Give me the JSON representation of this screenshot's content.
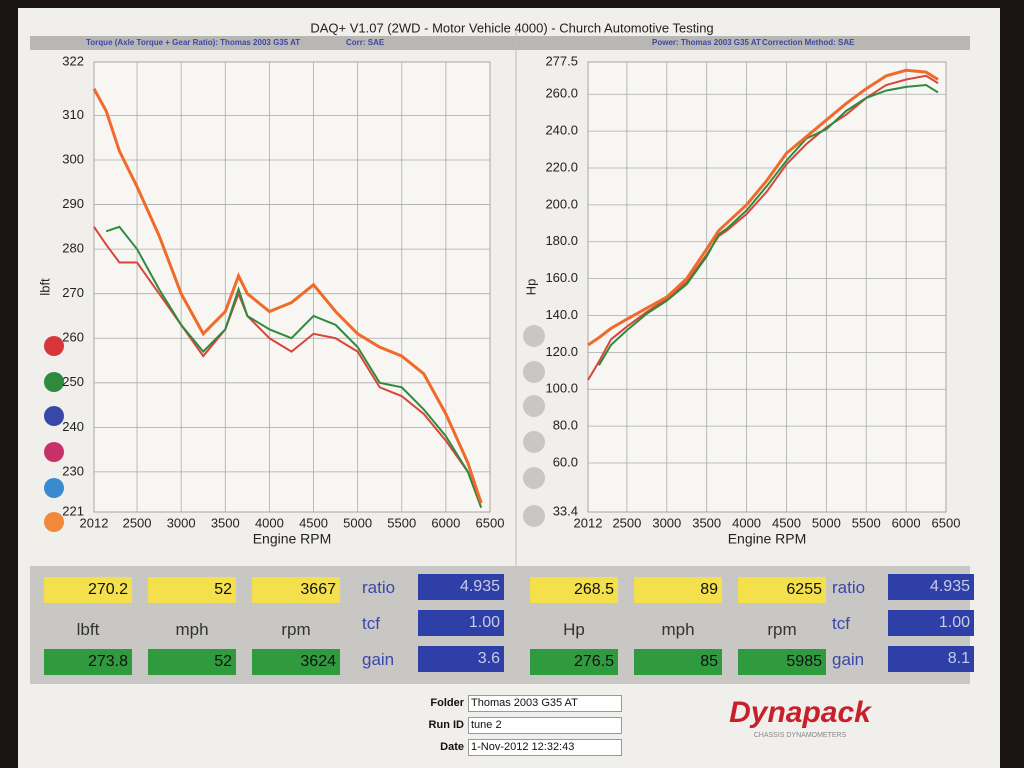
{
  "header": {
    "title": "DAQ+ V1.07 (2WD - Motor Vehicle 4000) - Church Automotive Testing"
  },
  "chart_data": [
    {
      "type": "line",
      "title": "Torque (Axle Torque + Gear Ratio): Thomas 2003 G35 AT",
      "subtitle": "Corr: SAE",
      "x_label": "Engine RPM",
      "y_label": "lbft",
      "x": [
        2012,
        2150,
        2300,
        2500,
        2750,
        3000,
        3250,
        3500,
        3650,
        3750,
        4000,
        4250,
        4500,
        4750,
        5000,
        5250,
        5500,
        5750,
        6000,
        6250,
        6400
      ],
      "xlim": [
        2012,
        6500
      ],
      "xticks": [
        2012,
        2500,
        3000,
        3500,
        4000,
        4500,
        5000,
        5500,
        6000,
        6500
      ],
      "ylim": [
        221,
        322
      ],
      "yticks": [
        221,
        230,
        240,
        250,
        260,
        270,
        280,
        290,
        300,
        310,
        322
      ],
      "grid": true,
      "series": [
        {
          "color": "#d8453a",
          "values": [
            285,
            281,
            277,
            277,
            270,
            263,
            256,
            262,
            270,
            265,
            260,
            257,
            261,
            260,
            257,
            249,
            247,
            243,
            237,
            230,
            222
          ]
        },
        {
          "color": "#2e8b3e",
          "values": [
            null,
            284,
            285,
            280,
            271,
            263,
            257,
            262,
            271,
            265,
            262,
            260,
            265,
            263,
            258,
            250,
            249,
            244,
            238,
            230,
            222
          ]
        },
        {
          "color": "#f06a2a",
          "values": [
            316,
            311,
            302,
            294,
            283,
            270,
            261,
            266,
            274,
            270,
            266,
            268,
            272,
            266,
            261,
            258,
            256,
            252,
            243,
            232,
            223
          ]
        }
      ]
    },
    {
      "type": "line",
      "title": "Power: Thomas 2003 G35 AT",
      "subtitle": "Correction Method: SAE",
      "x_label": "Engine RPM",
      "y_label": "Hp",
      "x": [
        2012,
        2150,
        2300,
        2500,
        2750,
        3000,
        3250,
        3500,
        3650,
        3750,
        4000,
        4250,
        4500,
        4750,
        5000,
        5250,
        5500,
        5750,
        6000,
        6250,
        6400
      ],
      "xlim": [
        2012,
        6500
      ],
      "xticks": [
        2012,
        2500,
        3000,
        3500,
        4000,
        4500,
        5000,
        5500,
        6000,
        6500
      ],
      "ylim": [
        33.4,
        277.5
      ],
      "yticks": [
        33.4,
        {
          "value": 60,
          "label": "60.0"
        },
        {
          "value": 80,
          "label": "80.0"
        },
        {
          "value": 100,
          "label": "100.0"
        },
        {
          "value": 120,
          "label": "120.0"
        },
        {
          "value": 140,
          "label": "140.0"
        },
        {
          "value": 160,
          "label": "160.0"
        },
        {
          "value": 180,
          "label": "180.0"
        },
        {
          "value": 200,
          "label": "200.0"
        },
        {
          "value": 220,
          "label": "220.0"
        },
        {
          "value": 240,
          "label": "240.0"
        },
        {
          "value": 260,
          "label": "260.0"
        },
        277.5
      ],
      "grid": true,
      "series": [
        {
          "color": "#d8453a",
          "values": [
            105,
            115,
            127,
            134,
            142,
            149,
            158,
            173,
            183,
            186,
            195,
            207,
            222,
            233,
            242,
            249,
            258,
            265,
            268,
            270,
            266
          ]
        },
        {
          "color": "#2e8b3e",
          "values": [
            null,
            113,
            124,
            132,
            141,
            148,
            157,
            172,
            184,
            187,
            197,
            210,
            224,
            236,
            241,
            251,
            258,
            262,
            264,
            265,
            261
          ]
        },
        {
          "color": "#f06a2a",
          "values": [
            124,
            128,
            133,
            138,
            144,
            150,
            160,
            176,
            186,
            190,
            200,
            213,
            228,
            237,
            246,
            255,
            263,
            270,
            273,
            272,
            268
          ]
        }
      ]
    }
  ],
  "readouts": [
    {
      "top": [
        "270.2",
        "52",
        "3667"
      ],
      "units": [
        "lbft",
        "mph",
        "rpm"
      ],
      "bottom": [
        "273.8",
        "52",
        "3624"
      ],
      "factors": [
        {
          "label": "ratio",
          "value": "4.935"
        },
        {
          "label": "tcf",
          "value": "1.00"
        },
        {
          "label": "gain",
          "value": "3.6"
        }
      ]
    },
    {
      "top": [
        "268.5",
        "89",
        "6255"
      ],
      "units": [
        "Hp",
        "mph",
        "rpm"
      ],
      "bottom": [
        "276.5",
        "85",
        "5985"
      ],
      "factors": [
        {
          "label": "ratio",
          "value": "4.935"
        },
        {
          "label": "tcf",
          "value": "1.00"
        },
        {
          "label": "gain",
          "value": "8.1"
        }
      ]
    }
  ],
  "footer": {
    "fields": [
      {
        "label": "Folder",
        "value": "Thomas 2003 G35 AT"
      },
      {
        "label": "Run ID",
        "value": "tune 2"
      },
      {
        "label": "Date",
        "value": "1-Nov-2012 12:32:43"
      }
    ],
    "logo": "Dynapack",
    "logo_sub": "CHASSIS DYNAMOMETERS"
  }
}
